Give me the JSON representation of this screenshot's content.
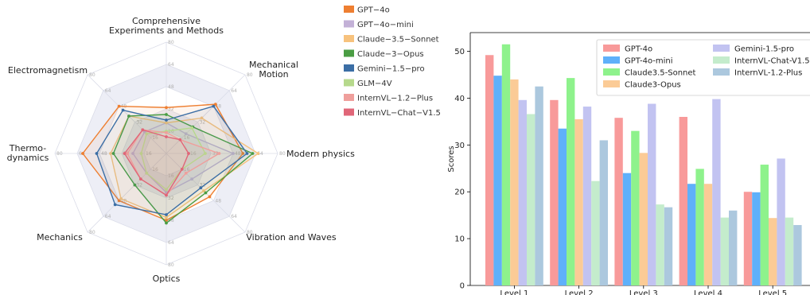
{
  "chart_data": [
    {
      "type": "radar",
      "axes": [
        "Comprehensive Experiments and Methods",
        "Mechanical Motion",
        "Modern physics",
        "Vibration and Waves",
        "Optics",
        "Mechanics",
        "Thermo-dynamics",
        "Electromagnetism"
      ],
      "axis_label_lines": [
        [
          "Comprehensive",
          "Experiments and Methods"
        ],
        [
          "Mechanical",
          "Motion"
        ],
        [
          "Modern physics"
        ],
        [
          "Vibration and Waves"
        ],
        [
          "Optics"
        ],
        [
          "Mechanics"
        ],
        [
          "Thermo-",
          "dynamics"
        ],
        [
          "Electromagnetism"
        ]
      ],
      "rings": [
        16,
        32,
        48,
        64,
        80
      ],
      "range": [
        0,
        80
      ],
      "series": [
        {
          "name": "GPT−4o",
          "color": "#ee7f31",
          "values": [
            33,
            50,
            55,
            44,
            48,
            48,
            60,
            48
          ]
        },
        {
          "name": "GPT−4o−mini",
          "color": "#c3b1d7",
          "values": [
            22,
            20,
            48,
            26,
            28,
            20,
            24,
            22
          ]
        },
        {
          "name": "Claude−3.5−Sonnet",
          "color": "#f7c27d",
          "values": [
            22,
            36,
            66,
            38,
            46,
            46,
            40,
            38
          ]
        },
        {
          "name": "Claude−3−Opus",
          "color": "#4a9d43",
          "values": [
            28,
            27,
            62,
            40,
            50,
            32,
            38,
            38
          ]
        },
        {
          "name": "Gemini−1.5−pro",
          "color": "#3b6ea5",
          "values": [
            24,
            48,
            58,
            35,
            44,
            52,
            50,
            44
          ]
        },
        {
          "name": "GLM−4V",
          "color": "#b6d98c",
          "values": [
            16,
            26,
            28,
            16,
            26,
            20,
            18,
            20
          ]
        },
        {
          "name": "InternVL−1.2−Plus",
          "color": "#ef9f9c",
          "values": [
            15,
            14,
            38,
            20,
            30,
            26,
            28,
            24
          ]
        },
        {
          "name": "InternVL−Chat−V1.5",
          "color": "#e06678",
          "values": [
            12,
            14,
            16,
            16,
            30,
            26,
            30,
            24
          ]
        }
      ]
    },
    {
      "type": "bar",
      "categories": [
        "Level 1",
        "Level 2",
        "Level 3",
        "Level 4",
        "Level 5"
      ],
      "ylabel": "Scores",
      "ylim": [
        0,
        54
      ],
      "yticks": [
        0,
        10,
        20,
        30,
        40,
        50
      ],
      "legend": "top-right",
      "series": [
        {
          "name": "GPT-4o",
          "color": "#f89a9a",
          "values": [
            49.2,
            39.6,
            35.8,
            36.0,
            20.0
          ]
        },
        {
          "name": "GPT-4o-mini",
          "color": "#5fb0fa",
          "values": [
            44.8,
            33.5,
            24.0,
            21.7,
            19.9
          ]
        },
        {
          "name": "Claude3.5-Sonnet",
          "color": "#8ef28c",
          "values": [
            51.5,
            44.3,
            33.0,
            24.9,
            25.8
          ]
        },
        {
          "name": "Claude3-Opus",
          "color": "#fbcb96",
          "values": [
            44.0,
            35.5,
            28.3,
            21.7,
            14.4
          ]
        },
        {
          "name": "Gemini-1.5-pro",
          "color": "#c2c3f1",
          "values": [
            39.6,
            38.2,
            38.8,
            39.8,
            27.1
          ]
        },
        {
          "name": "InternVL-Chat-V1.5",
          "color": "#c4eccc",
          "values": [
            36.6,
            22.3,
            17.3,
            14.5,
            14.5
          ]
        },
        {
          "name": "InternVL-1.2-Plus",
          "color": "#acc8de",
          "values": [
            42.5,
            31.0,
            16.7,
            16.0,
            12.9
          ]
        }
      ]
    }
  ]
}
